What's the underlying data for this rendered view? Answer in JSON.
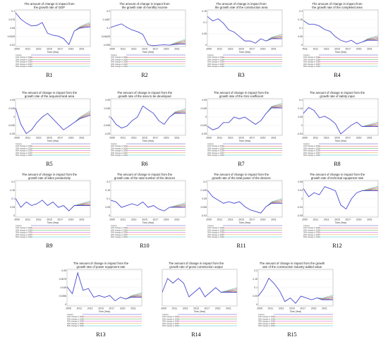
{
  "figure": {
    "legend_entries": [
      "Current",
      "10% change in 2021",
      "20% change in 2021",
      "30% change in 2021",
      "40% change in 2021",
      "50% change in 2021"
    ],
    "x_label": "Time (Year)"
  },
  "colors": {
    "current": "#4a4ad0",
    "variants": [
      "#e05050",
      "#40b040",
      "#d040d0",
      "#e0a030",
      "#30c0d0"
    ],
    "axis": "#888888"
  },
  "chart_data": [
    {
      "type": "line",
      "panel_label": "R1",
      "title": [
        "The amount of change in impact from",
        "the growth rate of GDP"
      ],
      "x": [
        2009,
        2010,
        2011,
        2012,
        2013,
        2014,
        2015,
        2016,
        2017,
        2018,
        2019,
        2020,
        2021,
        2022,
        2023
      ],
      "y": [
        0.095,
        0.072,
        0.058,
        0.048,
        0.05,
        0.06,
        0.022,
        0.015,
        0.012,
        0.003,
        -0.018,
        0.03,
        0.04,
        0.043,
        0.045
      ],
      "yticks": [
        "0.1",
        "0.075",
        "0.05",
        "0.0025",
        "-0.02"
      ],
      "ylim": [
        -0.025,
        0.105
      ],
      "xticks": [
        "2009",
        "2011",
        "2013",
        "2015",
        "2017",
        "2019",
        "2021"
      ]
    },
    {
      "type": "line",
      "panel_label": "R2",
      "title": [
        "The amount of change in impact from",
        "the growth rate of monthly income"
      ],
      "x": [
        2009,
        2010,
        2011,
        2012,
        2013,
        2014,
        2015,
        2016,
        2017,
        2018,
        2019,
        2020,
        2021,
        2022,
        2023
      ],
      "y": [
        0.1,
        0.11,
        0.12,
        0.1,
        0.085,
        0.075,
        0.06,
        0.0,
        -0.005,
        -0.002,
        0.0,
        -0.002,
        0.002,
        0.004,
        0.005
      ],
      "yticks": [
        "0.2",
        "0.1487",
        "0.1",
        "0.04625",
        "-0.005"
      ],
      "ylim": [
        -0.01,
        0.2
      ],
      "xticks": [
        "2009",
        "2011",
        "2013",
        "2015",
        "2017",
        "2019",
        "2021"
      ]
    },
    {
      "type": "line",
      "panel_label": "R3",
      "title": [
        "The amount of change in impact from",
        "the growth rate of the construction area"
      ],
      "x": [
        2009,
        2010,
        2011,
        2012,
        2013,
        2014,
        2015,
        2016,
        2017,
        2018,
        2019,
        2020,
        2021,
        2022,
        2023
      ],
      "y": [
        0.13,
        0.11,
        0.12,
        0.1,
        0.07,
        0.06,
        0.04,
        0.02,
        0.02,
        0.01,
        0.03,
        0.02,
        0.03,
        0.03,
        0.03
      ],
      "yticks": [
        "0.15",
        "0.1",
        "0.05",
        "0"
      ],
      "ylim": [
        -0.005,
        0.16
      ],
      "xticks": [
        "2009",
        "2011",
        "2013",
        "2015",
        "2017",
        "2019",
        "2021"
      ]
    },
    {
      "type": "line",
      "panel_label": "R4",
      "title": [
        "The amount of change in impact from",
        "the growth rate of the completed area"
      ],
      "x": [
        2009,
        2010,
        2011,
        2012,
        2013,
        2014,
        2015,
        2016,
        2017,
        2018,
        2019,
        2020,
        2021,
        2022,
        2023
      ],
      "y": [
        0.14,
        0.12,
        0.12,
        0.11,
        0.09,
        0.08,
        0.05,
        0.03,
        0.02,
        0.03,
        0.01,
        0.02,
        0.03,
        0.03,
        0.03
      ],
      "yticks": [
        "0.2",
        "0.15",
        "0.1",
        "0.05",
        "0"
      ],
      "ylim": [
        -0.005,
        0.2
      ],
      "xticks": [
        "Time",
        "2011",
        "2013",
        "2015",
        "2017",
        "2019",
        "2021"
      ]
    },
    {
      "type": "line",
      "panel_label": "R5",
      "title": [
        "The amount of change in impact from the",
        "growth rate of the acquired land area"
      ],
      "x": [
        2009,
        2010,
        2011,
        2012,
        2013,
        2014,
        2015,
        2016,
        2017,
        2018,
        2019,
        2020,
        2021,
        2022,
        2023
      ],
      "y": [
        0.05,
        -0.04,
        -0.09,
        -0.07,
        -0.03,
        0.0,
        0.02,
        -0.01,
        -0.04,
        -0.07,
        -0.05,
        -0.03,
        -0.01,
        0.0,
        0.01
      ],
      "yticks": [
        "0.09",
        "0.045",
        "0",
        "-0.045",
        "-0.09"
      ],
      "ylim": [
        -0.1,
        0.1
      ],
      "xticks": [
        "2009",
        "2011",
        "2013",
        "2015",
        "2017",
        "2019",
        "2021"
      ]
    },
    {
      "type": "line",
      "panel_label": "R6",
      "title": [
        "The amount of change in impact from the",
        "growth rate of the area to be developed"
      ],
      "x": [
        2009,
        2010,
        2011,
        2012,
        2013,
        2014,
        2015,
        2016,
        2017,
        2018,
        2019,
        2020,
        2021,
        2022,
        2023
      ],
      "y": [
        0.0,
        -0.04,
        -0.06,
        -0.05,
        -0.02,
        0.0,
        0.06,
        0.04,
        0.02,
        -0.02,
        -0.04,
        0.0,
        0.02,
        0.02,
        0.02
      ],
      "yticks": [
        "0.09",
        "0.045",
        "0",
        "-0.045",
        "-0.09"
      ],
      "ylim": [
        -0.1,
        0.1
      ],
      "xticks": [
        "2009",
        "2011",
        "2013",
        "2015",
        "2017",
        "2019",
        "2021"
      ]
    },
    {
      "type": "line",
      "panel_label": "R7",
      "title": [
        "The amount of change in impact from the",
        "growth rate of the Gini coefficient"
      ],
      "x": [
        2009,
        2010,
        2011,
        2012,
        2013,
        2014,
        2015,
        2016,
        2017,
        2018,
        2019,
        2020,
        2021,
        2022,
        2023
      ],
      "y": [
        -0.05,
        -0.07,
        -0.06,
        -0.03,
        -0.03,
        0.0,
        -0.01,
        0.0,
        -0.02,
        -0.04,
        -0.02,
        0.02,
        0.05,
        0.05,
        0.05
      ],
      "yticks": [
        "0.09",
        "0.045",
        "0",
        "-0.045",
        "-0.09"
      ],
      "ylim": [
        -0.1,
        0.1
      ],
      "xticks": [
        "2009",
        "2011",
        "2013",
        "2015",
        "2017",
        "2019",
        "2021"
      ]
    },
    {
      "type": "line",
      "panel_label": "R8",
      "title": [
        "The amount of change in impact from the",
        "growth rate of safety input"
      ],
      "x": [
        2009,
        2010,
        2011,
        2012,
        2013,
        2014,
        2015,
        2016,
        2017,
        2018,
        2019,
        2020,
        2021,
        2022,
        2023
      ],
      "y": [
        0.1,
        0.14,
        0.12,
        0.07,
        0.08,
        0.06,
        0.03,
        -0.04,
        -0.01,
        0.02,
        0.04,
        0.01,
        0.01,
        0.01,
        0.01
      ],
      "yticks": [
        "0.2",
        "0.14",
        "0.08",
        "0",
        "-0.04"
      ],
      "ylim": [
        -0.05,
        0.2
      ],
      "xticks": [
        "2009",
        "2011",
        "2013",
        "2015",
        "2017",
        "2019",
        "2021"
      ]
    },
    {
      "type": "line",
      "panel_label": "R9",
      "title": [
        "The amount of change in impact from the",
        "growth rate of labor productivity"
      ],
      "x": [
        2009,
        2010,
        2011,
        2012,
        2013,
        2014,
        2015,
        2016,
        2017,
        2018,
        2019,
        2020,
        2021,
        2022,
        2023
      ],
      "y": [
        0.1,
        0.05,
        0.08,
        0.06,
        0.07,
        0.09,
        0.06,
        0.08,
        0.05,
        0.06,
        0.03,
        0.06,
        0.06,
        0.06,
        0.06
      ],
      "yticks": [
        "0.2",
        "0.15",
        "0.1",
        "0.05",
        "0"
      ],
      "ylim": [
        -0.005,
        0.2
      ],
      "xticks": [
        "2009",
        "2011",
        "2013",
        "2015",
        "2017",
        "2019",
        "2021"
      ]
    },
    {
      "type": "line",
      "panel_label": "R10",
      "title": [
        "The amount of change in impact from the",
        "growth rate of the total number of the devices"
      ],
      "x": [
        2009,
        2010,
        2011,
        2012,
        2013,
        2014,
        2015,
        2016,
        2017,
        2018,
        2019,
        2020,
        2021,
        2022,
        2023
      ],
      "y": [
        0.09,
        0.08,
        0.05,
        0.06,
        0.07,
        0.06,
        0.08,
        0.05,
        0.06,
        0.04,
        0.03,
        0.05,
        0.05,
        0.05,
        0.05
      ],
      "yticks": [
        "0.2",
        "0.15",
        "0.1",
        "0.05",
        "0"
      ],
      "ylim": [
        -0.005,
        0.2
      ],
      "xticks": [
        "2009",
        "2011",
        "2013",
        "2015",
        "2017",
        "2019",
        "2021"
      ]
    },
    {
      "type": "line",
      "panel_label": "R11",
      "title": [
        "The amount of change in impact from the",
        "growth rate of the total power of the devices"
      ],
      "x": [
        2009,
        2010,
        2011,
        2012,
        2013,
        2014,
        2015,
        2016,
        2017,
        2018,
        2019,
        2020,
        2021,
        2022,
        2023
      ],
      "y": [
        0.14,
        0.1,
        0.08,
        0.06,
        0.07,
        0.06,
        0.07,
        0.04,
        0.02,
        0.01,
        0.0,
        0.04,
        0.06,
        0.06,
        0.06
      ],
      "yticks": [
        "0.2",
        "0.145",
        "0.09",
        "0.035",
        "-0.02"
      ],
      "ylim": [
        -0.025,
        0.2
      ],
      "xticks": [
        "2009",
        "2011",
        "2013",
        "2015",
        "2017",
        "2019",
        "2021"
      ]
    },
    {
      "type": "line",
      "panel_label": "R12",
      "title": [
        "The amount of change in impact from the",
        "growth rate of technical equipment rate"
      ],
      "x": [
        2009,
        2010,
        2011,
        2012,
        2013,
        2014,
        2015,
        2016,
        2017,
        2018,
        2019,
        2020,
        2021,
        2022,
        2023
      ],
      "y": [
        0.05,
        0.01,
        0.03,
        0.02,
        0.06,
        0.05,
        0.04,
        -0.03,
        -0.05,
        0.0,
        0.03,
        0.04,
        0.04,
        0.04,
        0.04
      ],
      "yticks": [
        "0.08",
        "0.04",
        "0",
        "-0.04",
        "-0.08"
      ],
      "ylim": [
        -0.09,
        0.09
      ],
      "xticks": [
        "2009",
        "2011",
        "2013",
        "2015",
        "2017",
        "2019",
        "2021"
      ]
    },
    {
      "type": "line",
      "panel_label": "R13",
      "title": [
        "The amount of change in impact from the",
        "growth rate of power equipment rate"
      ],
      "x": [
        2009,
        2010,
        2011,
        2012,
        2013,
        2014,
        2015,
        2016,
        2017,
        2018,
        2019,
        2020,
        2021,
        2022,
        2023
      ],
      "y": [
        0.05,
        0.03,
        0.09,
        0.04,
        0.045,
        0.02,
        0.025,
        0.02,
        0.025,
        0.01,
        0.02,
        0.015,
        0.02,
        0.02,
        0.02
      ],
      "yticks": [
        "0.09",
        "0.0675",
        "0.045",
        "0.0255",
        "0"
      ],
      "ylim": [
        -0.005,
        0.1
      ],
      "xticks": [
        "2009",
        "2011",
        "2013",
        "2015",
        "2017",
        "2019",
        "2021"
      ]
    },
    {
      "type": "line",
      "panel_label": "R14",
      "title": [
        "The amount of change in impact from the",
        "growth rate of gross construction output"
      ],
      "x": [
        2009,
        2010,
        2011,
        2012,
        2013,
        2014,
        2015,
        2016,
        2017,
        2018,
        2019,
        2020,
        2021,
        2022,
        2023
      ],
      "y": [
        0.0,
        0.03,
        0.02,
        0.03,
        0.02,
        -0.01,
        0.0,
        0.01,
        -0.01,
        0.0,
        0.01,
        0.0,
        0.0,
        0.0,
        0.0
      ],
      "yticks": [],
      "ylim": [
        -0.03,
        0.05
      ],
      "xticks": [
        "2009",
        "2011",
        "2013",
        "2015",
        "2017",
        "2019",
        "2021"
      ]
    },
    {
      "type": "line",
      "panel_label": "R15",
      "title": [
        "The amount of change in impact from the growth",
        "rate of the construction industry added value"
      ],
      "x": [
        2009,
        2010,
        2011,
        2012,
        2013,
        2014,
        2015,
        2016,
        2017,
        2018,
        2019,
        2020,
        2021,
        2022,
        2023
      ],
      "y": [
        0.05,
        0.09,
        0.15,
        0.12,
        0.08,
        0.02,
        0.04,
        0.01,
        0.05,
        0.04,
        0.03,
        0.04,
        0.03,
        0.03,
        0.03
      ],
      "yticks": [
        "0.2",
        "0.15",
        "0.1",
        "0.05",
        "0"
      ],
      "ylim": [
        -0.005,
        0.2
      ],
      "xticks": [
        "2009",
        "2011",
        "2013",
        "2015",
        "2017",
        "2019",
        "2021"
      ]
    }
  ]
}
